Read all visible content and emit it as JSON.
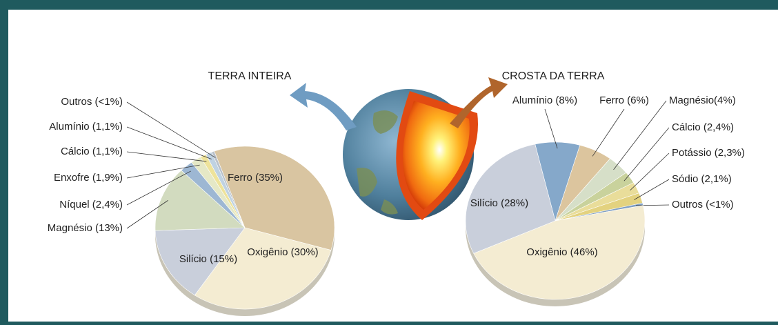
{
  "chart_data": [
    {
      "type": "pie",
      "title": "TERRA INTEIRA",
      "categories": [
        "Ferro (35%)",
        "Oxigênio (30%)",
        "Silício (15%)",
        "Magnésio (13%)",
        "Níquel (2,4%)",
        "Enxofre (1,9%)",
        "Cálcio (1,1%)",
        "Alumínio (1,1%)",
        "Outros (<1%)"
      ],
      "values": [
        35,
        30,
        15,
        13,
        2.4,
        1.9,
        1.1,
        1.1,
        0.5
      ],
      "colors": [
        "#d9c5a1",
        "#f4ecd2",
        "#c9cfdb",
        "#d2dbbf",
        "#9db7d3",
        "#e5e8c6",
        "#eee39b",
        "#bfd2e2",
        "#b9c1ca"
      ]
    },
    {
      "type": "pie",
      "title": "CROSTA DA TERRA",
      "categories": [
        "Alumínio (8%)",
        "Ferro (6%)",
        "Magnésio(4%)",
        "Cálcio (2,4%)",
        "Potássio (2,3%)",
        "Sódio (2,1%)",
        "Outros (<1%)",
        "Oxigênio (46%)",
        "Silício (28%)"
      ],
      "values": [
        8,
        6,
        4,
        2.4,
        2.3,
        2.1,
        0.5,
        46,
        28
      ],
      "colors": [
        "#85a8ca",
        "#dcc59e",
        "#d6dfc8",
        "#c9d29c",
        "#e9dd9a",
        "#e3d27f",
        "#7f9fc4",
        "#f4ecd2",
        "#c9cfdb"
      ]
    }
  ]
}
